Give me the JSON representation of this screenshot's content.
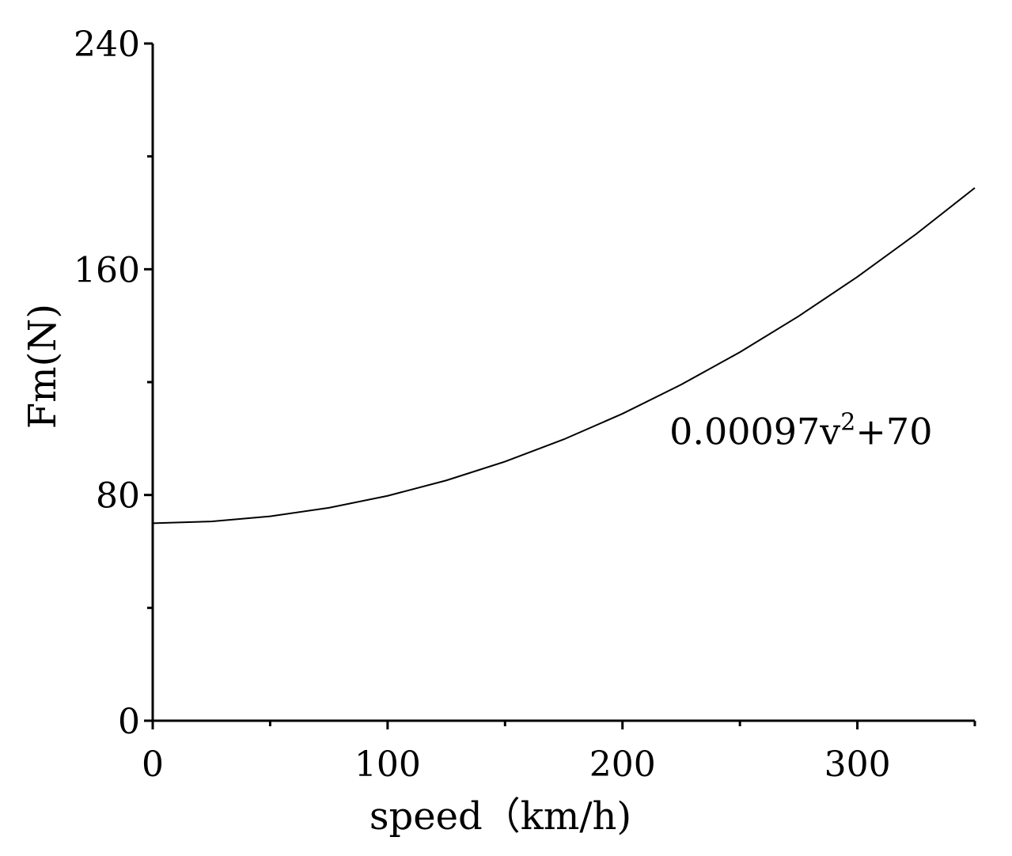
{
  "chart_data": {
    "type": "line",
    "title": "",
    "xlabel": "speed（km/h)",
    "ylabel": "Fm(N)",
    "xlim": [
      0,
      350
    ],
    "ylim": [
      0,
      240
    ],
    "x_ticks": [
      0,
      100,
      200,
      300
    ],
    "x_minor_ticks": [
      50,
      150,
      250,
      350
    ],
    "y_ticks": [
      0,
      80,
      160,
      240
    ],
    "y_minor_ticks": [
      40,
      120,
      200
    ],
    "grid": false,
    "series": [
      {
        "x": [
          0,
          25,
          50,
          75,
          100,
          125,
          150,
          175,
          200,
          225,
          250,
          275,
          300,
          325,
          350
        ],
        "values": [
          70,
          70.61,
          72.43,
          75.46,
          79.7,
          85.16,
          91.83,
          99.71,
          108.8,
          119.11,
          130.63,
          143.36,
          157.3,
          172.46,
          188.83
        ]
      }
    ],
    "annotation": {
      "base": "0.00097v",
      "sup": "2",
      "tail": "+70",
      "at": [
        220,
        98
      ]
    }
  }
}
